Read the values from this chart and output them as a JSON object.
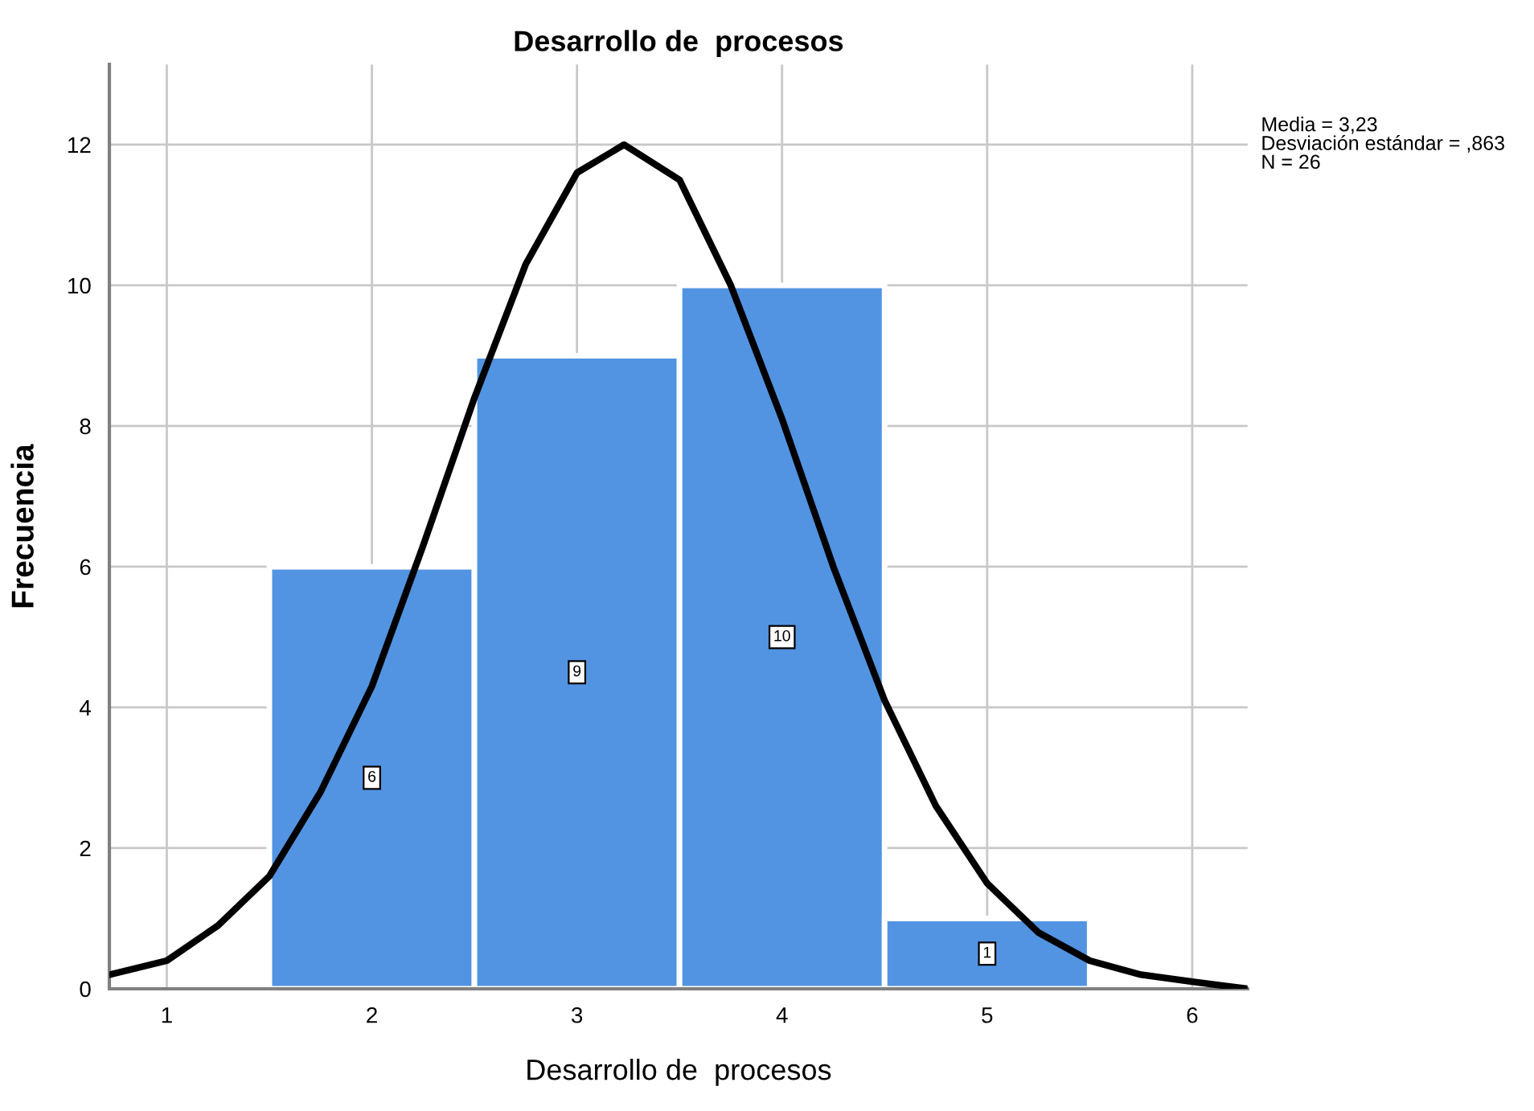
{
  "chart_data": {
    "type": "histogram",
    "title": "Desarrollo de  procesos",
    "xlabel": "Desarrollo de  procesos",
    "ylabel": "Frecuencia",
    "bins": [
      1.5,
      2.5,
      3.5,
      4.5,
      5.5
    ],
    "values": [
      6,
      9,
      10,
      1
    ],
    "color": "#5294e2",
    "value_labels": [
      "6",
      "9",
      "10",
      "1"
    ],
    "series": [
      {
        "type": "line",
        "color": "#000000",
        "x": [
          0.72,
          1,
          1.25,
          1.5,
          1.75,
          2,
          2.25,
          2.5,
          2.75,
          3,
          3.23,
          3.5,
          3.75,
          4,
          4.25,
          4.5,
          4.75,
          5,
          5.25,
          5.5,
          5.75,
          6,
          6.27
        ],
        "values": [
          0.2,
          0.4,
          0.9,
          1.6,
          2.8,
          4.3,
          6.3,
          8.4,
          10.3,
          11.6,
          12.0,
          11.5,
          10.0,
          8.1,
          6.0,
          4.1,
          2.6,
          1.5,
          0.8,
          0.4,
          0.2,
          0.1,
          0.0
        ]
      }
    ],
    "xlim": [
      0.72,
      6.27
    ],
    "ylim": [
      0,
      13.14
    ],
    "xticks": [
      1,
      2,
      3,
      4,
      5,
      6
    ],
    "yticks": [
      0,
      2,
      4,
      6,
      8,
      10,
      12
    ],
    "grid": true,
    "annotations": [
      "Media = 3,23",
      "Desviación estándar = ,863",
      "N = 26"
    ]
  }
}
